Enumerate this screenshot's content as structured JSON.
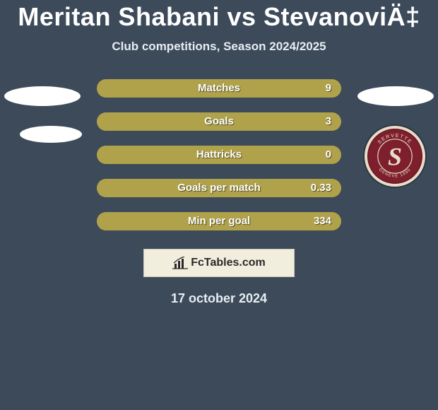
{
  "header": {
    "title": "Meritan Shabani vs StevanoviÄ‡",
    "subtitle": "Club competitions, Season 2024/2025"
  },
  "left_team": {
    "name": "left-team",
    "ellipse_color": "#ffffff"
  },
  "right_team": {
    "name": "Servette",
    "ellipse_color": "#ffffff",
    "badge": {
      "ring_color": "#7d1f2d",
      "ring_text_top": "SERVETTE",
      "ring_text_bottom": "GENÈVE 1890",
      "letter": "S",
      "letter_color": "#e9dcc9",
      "inner_bg": "#7d1f2d",
      "outer_border": "#e9dcc9"
    }
  },
  "bars": {
    "track_color": "#a19340",
    "fill_color": "#b0a24a",
    "label_color": "#ffffff",
    "items": [
      {
        "label": "Matches",
        "value": "9",
        "fill_pct": 100
      },
      {
        "label": "Goals",
        "value": "3",
        "fill_pct": 100
      },
      {
        "label": "Hattricks",
        "value": "0",
        "fill_pct": 100
      },
      {
        "label": "Goals per match",
        "value": "0.33",
        "fill_pct": 100
      },
      {
        "label": "Min per goal",
        "value": "334",
        "fill_pct": 100
      }
    ]
  },
  "branding": {
    "box_bg": "#f2eede",
    "box_border": "#cfc9b5",
    "site_name": "FcTables.com",
    "icon_color": "#2a2a2a"
  },
  "footer": {
    "date": "17 october 2024"
  },
  "colors": {
    "page_bg": "#3c4a5a",
    "title_color": "#ffffff",
    "subtitle_color": "#e8edf2"
  }
}
